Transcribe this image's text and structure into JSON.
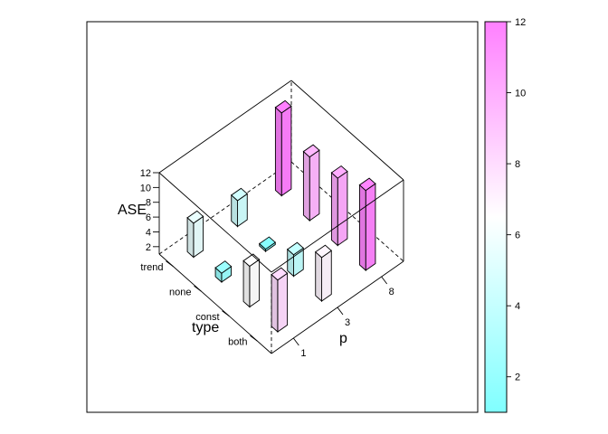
{
  "chart_data": {
    "type": "bar3d",
    "title": "",
    "zlabel": "ASE",
    "xlabel": "p",
    "ylabel": "type",
    "x_ticks": [
      "1",
      "3",
      "8"
    ],
    "y_categories": [
      "both",
      "const",
      "none",
      "trend"
    ],
    "z_ticks": [
      "2",
      "4",
      "6",
      "8",
      "10",
      "12"
    ],
    "zlim": [
      1,
      12
    ],
    "colorkey": {
      "range": [
        1,
        12
      ],
      "ticks": [
        "2",
        "4",
        "6",
        "8",
        "10",
        "12"
      ],
      "low_color": "#80ffff",
      "high_color": "#ff80ff"
    },
    "bars": [
      {
        "p": "1",
        "type": "both",
        "value": 8.0
      },
      {
        "p": "3",
        "type": "both",
        "value": 6.9
      },
      {
        "p": "8",
        "type": "both",
        "value": 11.8
      },
      {
        "p": "1",
        "type": "const",
        "value": 6.5
      },
      {
        "p": "3",
        "type": "const",
        "value": 3.9
      },
      {
        "p": "8",
        "type": "const",
        "value": 10.1
      },
      {
        "p": "1",
        "type": "none",
        "value": 2.2
      },
      {
        "p": "3",
        "type": "none",
        "value": 1.3
      },
      {
        "p": "8",
        "type": "none",
        "value": 9.6
      },
      {
        "p": "1",
        "type": "trend",
        "value": 5.6
      },
      {
        "p": "3",
        "type": "trend",
        "value": 4.5
      },
      {
        "p": "8",
        "type": "trend",
        "value": 12.2
      }
    ]
  }
}
